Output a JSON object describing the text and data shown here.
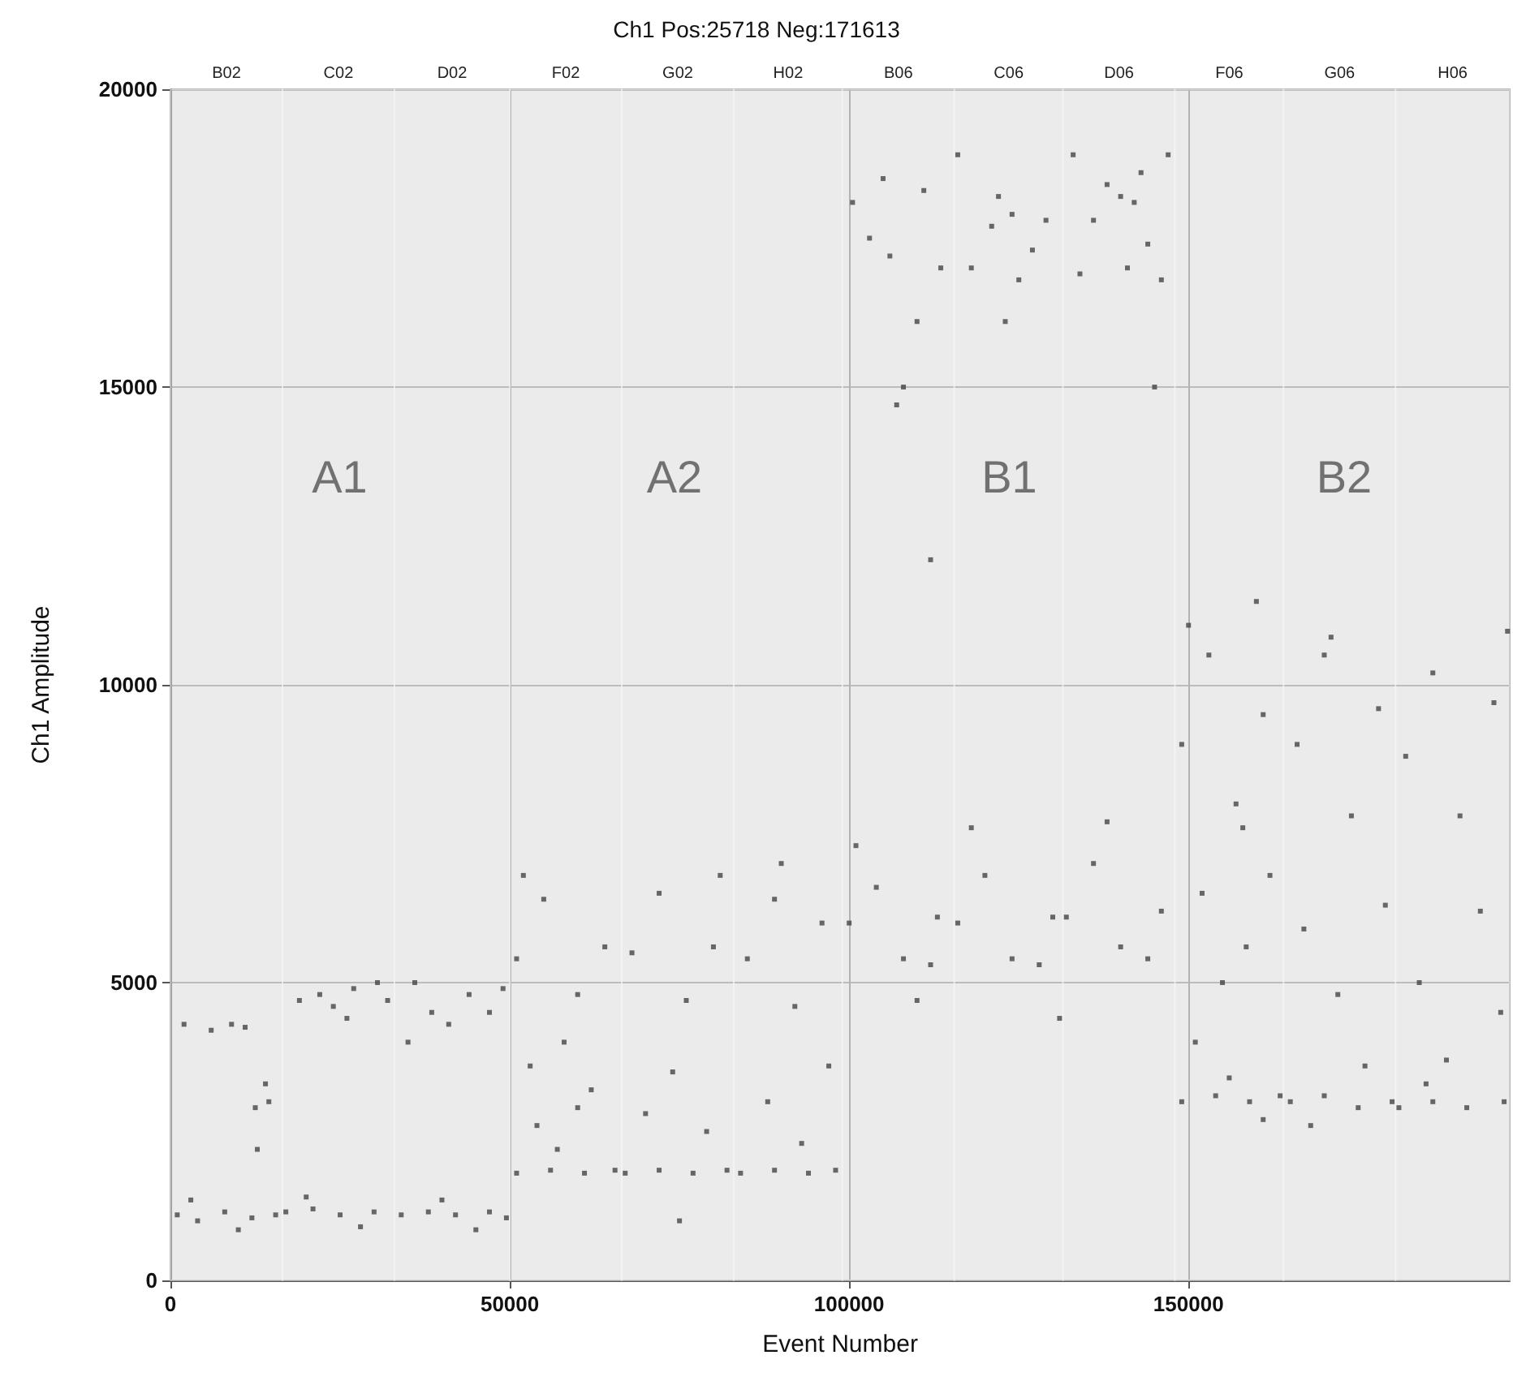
{
  "chart_data": {
    "type": "scatter",
    "title": "Ch1 Pos:25718 Neg:171613",
    "xlabel": "Event Number",
    "ylabel": "Ch1 Amplitude",
    "xlim": [
      0,
      197331
    ],
    "xticks": [
      0,
      {
        "value": 50000,
        "label": "50000"
      },
      {
        "value": 100000,
        "label": "100000"
      },
      {
        "value": 150000,
        "label": "150000"
      }
    ],
    "ylim": [
      0,
      20000
    ],
    "yticks": [
      0,
      {
        "value": 5000,
        "label": "5000"
      },
      {
        "value": 10000,
        "label": "10000"
      },
      {
        "value": 15000,
        "label": "15000"
      },
      {
        "value": 20000,
        "label": "20000"
      }
    ],
    "grid": true,
    "marker": "square",
    "bands": [
      {
        "axis": "x",
        "from": 0,
        "to": 16500,
        "label": "B02",
        "color": "#e6e6e6"
      },
      {
        "axis": "x",
        "from": 16500,
        "to": 33000,
        "label": "C02",
        "color": "#e6e6e6"
      },
      {
        "axis": "x",
        "from": 33000,
        "to": 50000,
        "label": "D02",
        "color": "#e6e6e6"
      },
      {
        "axis": "x",
        "from": 50000,
        "to": 66500,
        "label": "F02",
        "color": "#e6e6e6"
      },
      {
        "axis": "x",
        "from": 66500,
        "to": 83000,
        "label": "G02",
        "color": "#e6e6e6"
      },
      {
        "axis": "x",
        "from": 83000,
        "to": 99000,
        "label": "H02",
        "color": "#e6e6e6"
      },
      {
        "axis": "x",
        "from": 99000,
        "to": 115500,
        "label": "B06",
        "color": "#e6e6e6"
      },
      {
        "axis": "x",
        "from": 115500,
        "to": 131500,
        "label": "C06",
        "color": "#e6e6e6"
      },
      {
        "axis": "x",
        "from": 131500,
        "to": 148000,
        "label": "D06",
        "color": "#e6e6e6"
      },
      {
        "axis": "x",
        "from": 148000,
        "to": 164000,
        "label": "F06",
        "color": "#e6e6e6"
      },
      {
        "axis": "x",
        "from": 164000,
        "to": 180500,
        "label": "G06",
        "color": "#e6e6e6"
      },
      {
        "axis": "x",
        "from": 180500,
        "to": 197331,
        "label": "H06",
        "color": "#e6e6e6"
      }
    ],
    "annotations": [
      "A1",
      "A2",
      "B1",
      "B2"
    ],
    "series": [
      {
        "color": "#454545",
        "x": [
          1000,
          4000,
          8000,
          12000,
          15500,
          3000,
          10000,
          6000,
          9000,
          11000,
          2000,
          12500,
          14000,
          12800,
          14500,
          17000,
          21000,
          25000,
          30000,
          20000,
          28000,
          19000,
          22000,
          24000,
          27000,
          30500,
          26000,
          32000,
          34000,
          38000,
          42000,
          47000,
          49500,
          40000,
          45000,
          36000,
          38500,
          41000,
          44000,
          47000,
          49000,
          35000,
          51000,
          56000,
          61000,
          65500,
          51000,
          55000,
          60000,
          64000,
          52000,
          58000,
          62000,
          54000,
          57000,
          60000,
          53000,
          67000,
          72000,
          77000,
          82000,
          75000,
          68000,
          72000,
          76000,
          80000,
          74000,
          79000,
          70000,
          81000,
          84000,
          89000,
          94000,
          98000,
          85000,
          89000,
          92000,
          96000,
          88000,
          93000,
          97000,
          90000,
          100000,
          104000,
          108000,
          113000,
          101000,
          112000,
          110000,
          100500,
          103000,
          105000,
          107000,
          108000,
          110000,
          111000,
          112000,
          113500,
          106000,
          116000,
          120000,
          124000,
          130000,
          118000,
          128000,
          131000,
          116000,
          118000,
          121000,
          122000,
          123000,
          125000,
          127000,
          129000,
          124000,
          132000,
          136000,
          140000,
          146000,
          138000,
          144000,
          133000,
          134000,
          136000,
          138000,
          140000,
          141000,
          143000,
          144000,
          145000,
          146000,
          147000,
          142000,
          149000,
          154000,
          159000,
          163500,
          156000,
          161000,
          149000,
          153000,
          157000,
          161000,
          150000,
          158000,
          160000,
          152000,
          155000,
          151000,
          158500,
          162000,
          165000,
          170000,
          175000,
          180000,
          168000,
          166000,
          170000,
          174000,
          178000,
          167000,
          172000,
          176000,
          179000,
          171000,
          181000,
          186000,
          191000,
          196500,
          185000,
          182000,
          186000,
          190000,
          195000,
          197000,
          184000,
          188000,
          193000,
          196000
        ],
        "values": [
          1100,
          1000,
          1150,
          1050,
          1100,
          1350,
          850,
          4200,
          4300,
          4250,
          4300,
          2900,
          3300,
          2200,
          3000,
          1150,
          1200,
          1100,
          1150,
          1400,
          900,
          4700,
          4800,
          4600,
          4900,
          5000,
          4400,
          4700,
          1100,
          1150,
          1100,
          1150,
          1050,
          1350,
          850,
          5000,
          4500,
          4300,
          4800,
          4500,
          4900,
          4000,
          1800,
          1850,
          1800,
          1850,
          5400,
          6400,
          4800,
          5600,
          6800,
          4000,
          3200,
          2600,
          2200,
          2900,
          3600,
          1800,
          1850,
          1800,
          1850,
          1000,
          5500,
          6500,
          4700,
          5600,
          3500,
          2500,
          2800,
          6800,
          1800,
          1850,
          1800,
          1850,
          5400,
          6400,
          4600,
          6000,
          3000,
          2300,
          3600,
          7000,
          6000,
          6600,
          5400,
          6100,
          7300,
          5300,
          4700,
          18100,
          17500,
          18500,
          14700,
          15000,
          16100,
          18300,
          12100,
          17000,
          17200,
          6000,
          6800,
          5400,
          6100,
          7600,
          5300,
          4400,
          18900,
          17000,
          17700,
          18200,
          16100,
          16800,
          17300,
          17800,
          17900,
          6100,
          7000,
          5600,
          6200,
          7700,
          5400,
          18900,
          16900,
          17800,
          18400,
          18200,
          17000,
          18600,
          17400,
          15000,
          16800,
          18900,
          18100,
          3000,
          3100,
          3000,
          3100,
          3400,
          2700,
          9000,
          10500,
          8000,
          9500,
          11000,
          7600,
          11400,
          6500,
          5000,
          4000,
          5600,
          6800,
          3000,
          3100,
          2900,
          3000,
          2600,
          9000,
          10500,
          7800,
          9600,
          5900,
          4800,
          3600,
          6300,
          10800,
          2900,
          3000,
          2900,
          3000,
          3300,
          8800,
          10200,
          7800,
          9700,
          10900,
          5000,
          3700,
          6200,
          4500
        ]
      }
    ]
  }
}
